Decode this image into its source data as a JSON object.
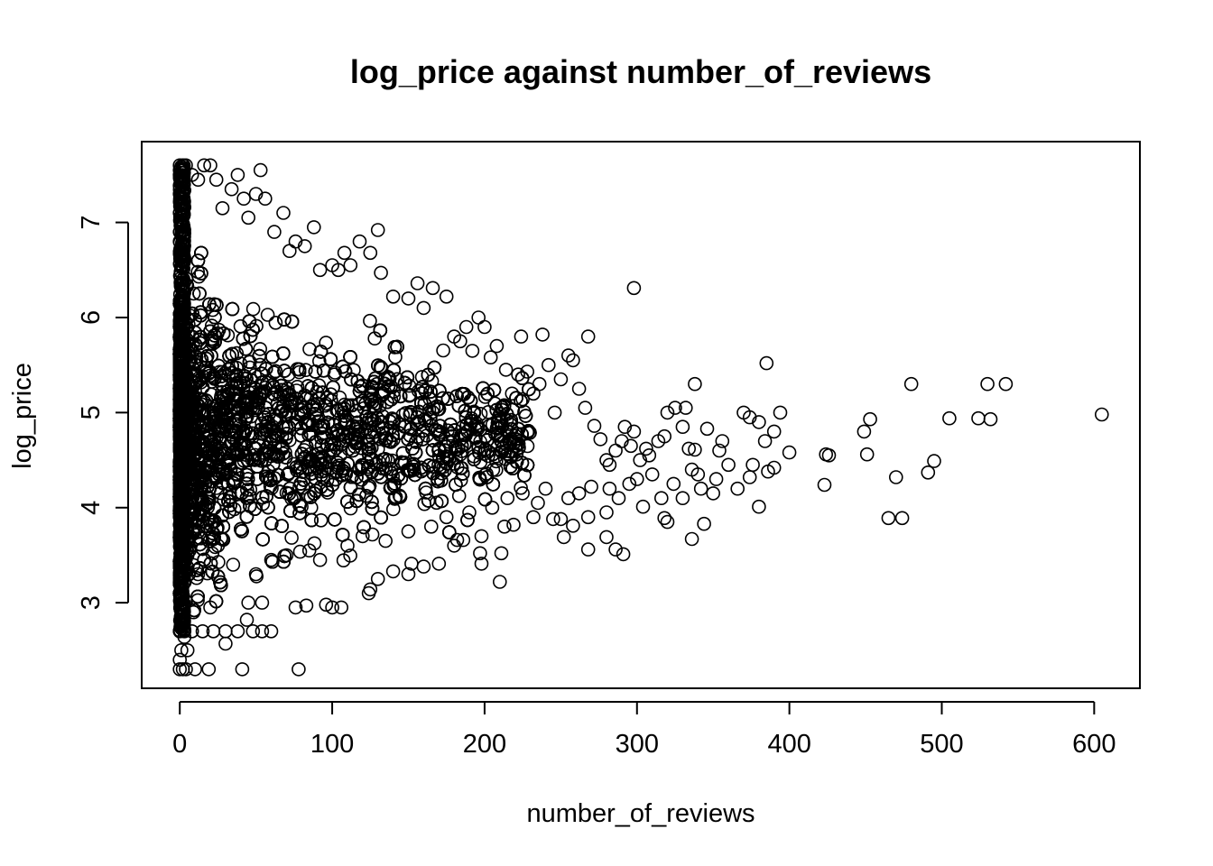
{
  "chart_data": {
    "type": "scatter",
    "title": "log_price against number_of_reviews",
    "xlabel": "number_of_reviews",
    "ylabel": "log_price",
    "xlim": [
      -25,
      630
    ],
    "ylim": [
      2.1,
      7.85
    ],
    "xticks": [
      "0",
      "100",
      "200",
      "300",
      "400",
      "500",
      "600"
    ],
    "yticks": [
      "3",
      "4",
      "5",
      "6",
      "7"
    ],
    "grid": false,
    "marker": "open-circle",
    "color": "#000000",
    "dense_region_note": "thousands of overlapping points near x=0..150; representative sample below",
    "points": [
      [
        0,
        2.3
      ],
      [
        2,
        2.3
      ],
      [
        4,
        2.3
      ],
      [
        10,
        2.3
      ],
      [
        19,
        2.3
      ],
      [
        41,
        2.3
      ],
      [
        78,
        2.3
      ],
      [
        0,
        2.4
      ],
      [
        1,
        2.5
      ],
      [
        5,
        2.5
      ],
      [
        3,
        2.64
      ],
      [
        0,
        2.7
      ],
      [
        3,
        2.7
      ],
      [
        8,
        2.7
      ],
      [
        15,
        2.7
      ],
      [
        22,
        2.7
      ],
      [
        30,
        2.7
      ],
      [
        38,
        2.7
      ],
      [
        48,
        2.7
      ],
      [
        54,
        2.7
      ],
      [
        60,
        2.7
      ],
      [
        44,
        2.82
      ],
      [
        30,
        2.57
      ],
      [
        9,
        2.9
      ],
      [
        20,
        2.95
      ],
      [
        45,
        3.0
      ],
      [
        54,
        3.0
      ],
      [
        76,
        2.95
      ],
      [
        83,
        2.97
      ],
      [
        96,
        2.98
      ],
      [
        100,
        2.95
      ],
      [
        106,
        2.95
      ],
      [
        124,
        3.1
      ],
      [
        125,
        3.14
      ],
      [
        210,
        3.22
      ],
      [
        130,
        3.25
      ],
      [
        150,
        3.3
      ],
      [
        140,
        3.33
      ],
      [
        160,
        3.38
      ],
      [
        152,
        3.41
      ],
      [
        170,
        3.41
      ],
      [
        198,
        3.41
      ],
      [
        197,
        3.52
      ],
      [
        211,
        3.52
      ],
      [
        268,
        3.56
      ],
      [
        286,
        3.56
      ],
      [
        291,
        3.51
      ],
      [
        180,
        3.6
      ],
      [
        182,
        3.66
      ],
      [
        186,
        3.66
      ],
      [
        252,
        3.69
      ],
      [
        280,
        3.69
      ],
      [
        198,
        3.7
      ],
      [
        213,
        3.8
      ],
      [
        219,
        3.82
      ],
      [
        245,
        3.88
      ],
      [
        250,
        3.88
      ],
      [
        258,
        3.81
      ],
      [
        232,
        3.9
      ],
      [
        268,
        3.9
      ],
      [
        280,
        3.95
      ],
      [
        304,
        4.01
      ],
      [
        318,
        3.89
      ],
      [
        320,
        3.85
      ],
      [
        336,
        3.67
      ],
      [
        344,
        3.83
      ],
      [
        380,
        4.01
      ],
      [
        465,
        3.89
      ],
      [
        474,
        3.89
      ],
      [
        0,
        3.2
      ],
      [
        5,
        3.5
      ],
      [
        12,
        3.3
      ],
      [
        25,
        3.6
      ],
      [
        35,
        3.4
      ],
      [
        50,
        3.3
      ],
      [
        60,
        3.45
      ],
      [
        70,
        3.5
      ],
      [
        85,
        3.55
      ],
      [
        92,
        3.45
      ],
      [
        110,
        3.6
      ],
      [
        120,
        3.7
      ],
      [
        135,
        3.65
      ],
      [
        150,
        3.75
      ],
      [
        165,
        3.8
      ],
      [
        175,
        3.9
      ],
      [
        190,
        3.95
      ],
      [
        205,
        4.0
      ],
      [
        215,
        4.1
      ],
      [
        225,
        4.15
      ],
      [
        235,
        4.05
      ],
      [
        240,
        4.2
      ],
      [
        255,
        4.1
      ],
      [
        262,
        4.15
      ],
      [
        270,
        4.22
      ],
      [
        282,
        4.2
      ],
      [
        288,
        4.1
      ],
      [
        295,
        4.25
      ],
      [
        300,
        4.3
      ],
      [
        310,
        4.35
      ],
      [
        316,
        4.1
      ],
      [
        324,
        4.25
      ],
      [
        330,
        4.1
      ],
      [
        336,
        4.4
      ],
      [
        340,
        4.35
      ],
      [
        342,
        4.2
      ],
      [
        350,
        4.15
      ],
      [
        352,
        4.3
      ],
      [
        360,
        4.45
      ],
      [
        366,
        4.2
      ],
      [
        374,
        4.32
      ],
      [
        376,
        4.45
      ],
      [
        386,
        4.38
      ],
      [
        390,
        4.42
      ],
      [
        400,
        4.58
      ],
      [
        423,
        4.24
      ],
      [
        424,
        4.56
      ],
      [
        426,
        4.55
      ],
      [
        449,
        4.8
      ],
      [
        451,
        4.56
      ],
      [
        453,
        4.93
      ],
      [
        470,
        4.32
      ],
      [
        491,
        4.37
      ],
      [
        495,
        4.49
      ],
      [
        505,
        4.94
      ],
      [
        524,
        4.94
      ],
      [
        530,
        5.3
      ],
      [
        532,
        4.93
      ],
      [
        542,
        5.3
      ],
      [
        605,
        4.98
      ],
      [
        480,
        5.3
      ],
      [
        298,
        6.31
      ],
      [
        385,
        5.52
      ],
      [
        394,
        5.0
      ],
      [
        380,
        4.9
      ],
      [
        374,
        4.95
      ],
      [
        370,
        5.0
      ],
      [
        384,
        4.7
      ],
      [
        390,
        4.8
      ],
      [
        356,
        4.7
      ],
      [
        354,
        4.6
      ],
      [
        346,
        4.83
      ],
      [
        338,
        5.3
      ],
      [
        334,
        4.62
      ],
      [
        338,
        4.61
      ],
      [
        330,
        4.85
      ],
      [
        332,
        5.05
      ],
      [
        325,
        5.05
      ],
      [
        320,
        5.0
      ],
      [
        318,
        4.75
      ],
      [
        314,
        4.7
      ],
      [
        306,
        4.62
      ],
      [
        308,
        4.55
      ],
      [
        302,
        4.5
      ],
      [
        298,
        4.8
      ],
      [
        296,
        4.65
      ],
      [
        292,
        4.85
      ],
      [
        290,
        4.7
      ],
      [
        286,
        4.6
      ],
      [
        282,
        4.45
      ],
      [
        280,
        4.5
      ],
      [
        276,
        4.72
      ],
      [
        272,
        4.86
      ],
      [
        268,
        5.8
      ],
      [
        266,
        5.05
      ],
      [
        262,
        5.25
      ],
      [
        258,
        5.55
      ],
      [
        255,
        5.6
      ],
      [
        250,
        5.35
      ],
      [
        246,
        5.0
      ],
      [
        242,
        5.5
      ],
      [
        238,
        5.82
      ],
      [
        236,
        5.3
      ],
      [
        232,
        5.2
      ],
      [
        228,
        5.43
      ],
      [
        224,
        5.8
      ],
      [
        222,
        5.4
      ],
      [
        218,
        5.2
      ],
      [
        214,
        5.45
      ],
      [
        208,
        5.7
      ],
      [
        204,
        5.58
      ],
      [
        200,
        5.9
      ],
      [
        196,
        6.0
      ],
      [
        192,
        5.65
      ],
      [
        188,
        5.9
      ],
      [
        184,
        5.75
      ],
      [
        180,
        5.8
      ],
      [
        175,
        6.22
      ],
      [
        166,
        6.31
      ],
      [
        160,
        6.1
      ],
      [
        156,
        6.36
      ],
      [
        150,
        6.2
      ],
      [
        140,
        6.22
      ],
      [
        132,
        6.47
      ],
      [
        125,
        6.68
      ],
      [
        130,
        6.92
      ],
      [
        118,
        6.8
      ],
      [
        112,
        6.55
      ],
      [
        108,
        6.68
      ],
      [
        104,
        6.5
      ],
      [
        100,
        6.55
      ],
      [
        92,
        6.5
      ],
      [
        88,
        6.95
      ],
      [
        82,
        6.75
      ],
      [
        76,
        6.8
      ],
      [
        72,
        6.7
      ],
      [
        68,
        7.1
      ],
      [
        62,
        6.9
      ],
      [
        56,
        7.25
      ],
      [
        53,
        7.55
      ],
      [
        50,
        7.3
      ],
      [
        45,
        7.05
      ],
      [
        42,
        7.25
      ],
      [
        38,
        7.5
      ],
      [
        34,
        7.35
      ],
      [
        28,
        7.15
      ],
      [
        24,
        7.45
      ],
      [
        20,
        7.6
      ],
      [
        16,
        7.6
      ],
      [
        12,
        7.45
      ],
      [
        8,
        7.5
      ],
      [
        4,
        7.6
      ],
      [
        2,
        7.6
      ],
      [
        0,
        7.6
      ],
      [
        0,
        7.55
      ],
      [
        0,
        7.5
      ],
      [
        1,
        7.4
      ],
      [
        0,
        7.3
      ],
      [
        2,
        7.2
      ],
      [
        0,
        7.1
      ],
      [
        1,
        7.0
      ],
      [
        0,
        6.9
      ],
      [
        0,
        6.8
      ]
    ]
  }
}
